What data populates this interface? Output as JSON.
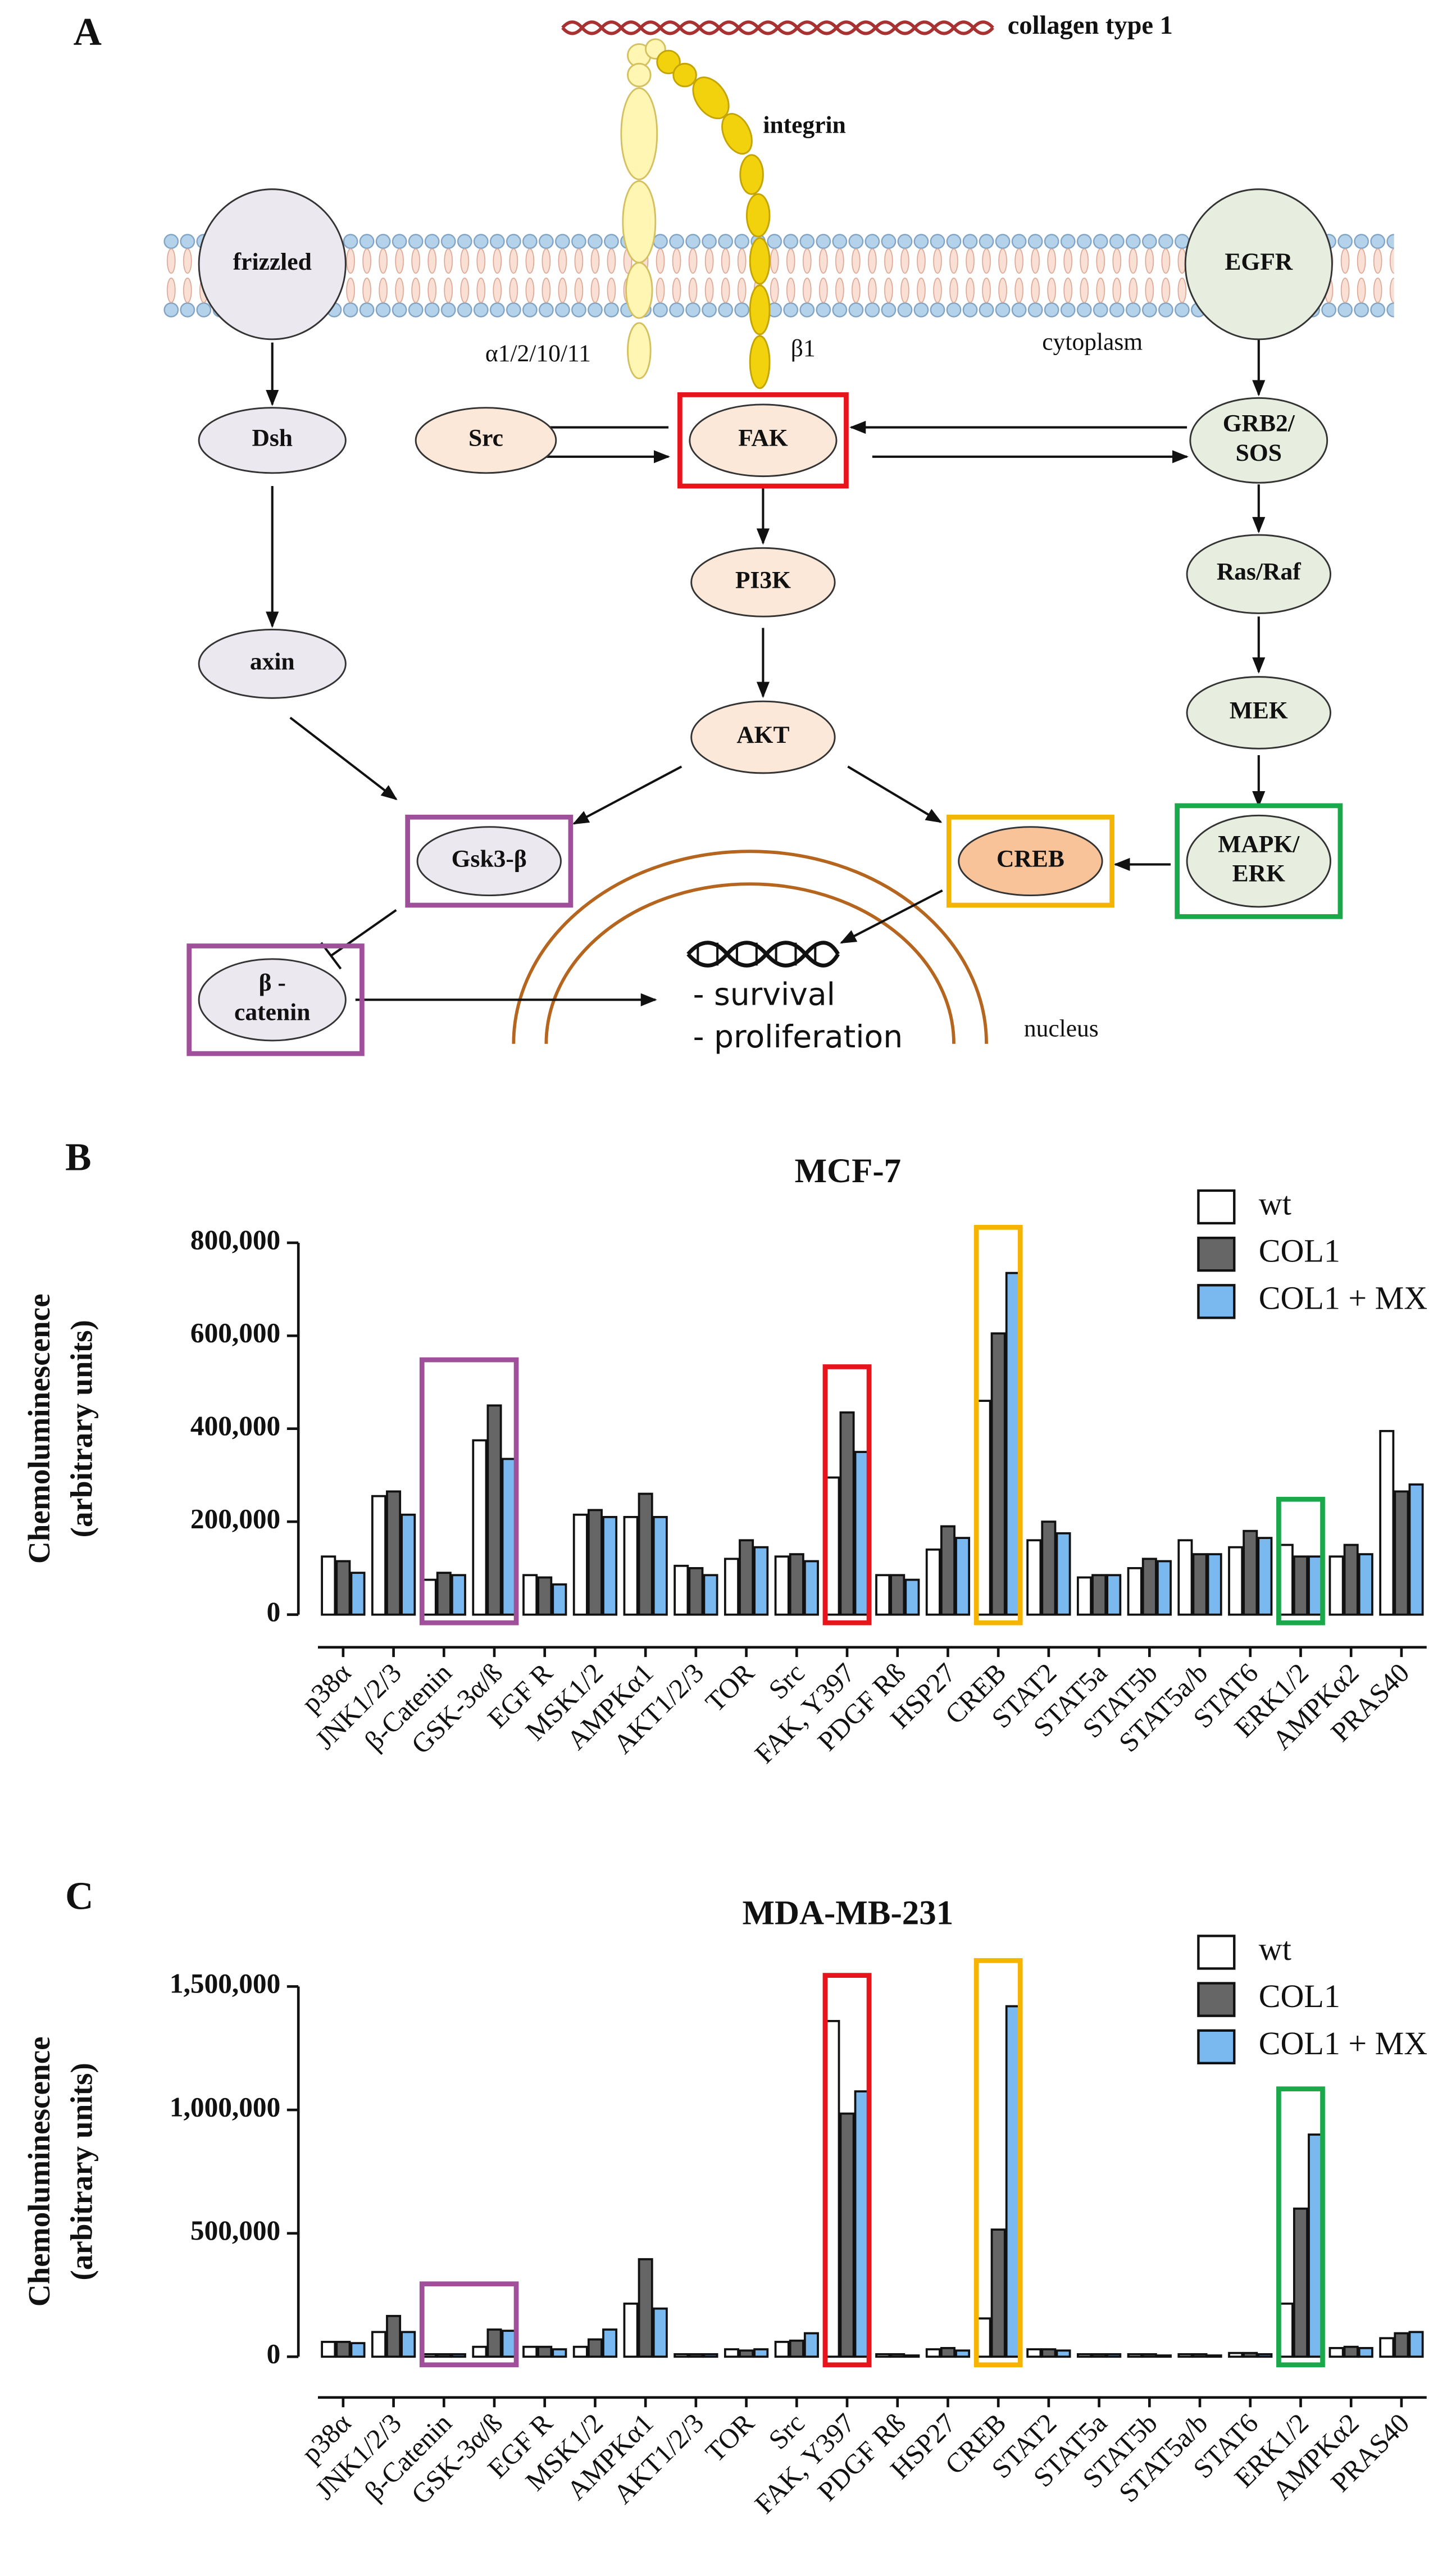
{
  "panel_a": {
    "label": "A",
    "collagen": "collagen type 1",
    "integrin": "integrin",
    "alpha": "α1/2/10/11",
    "beta": "β1",
    "cytoplasm": "cytoplasm",
    "nucleus": "nucleus",
    "outcomes": [
      "- survival",
      "- proliferation"
    ],
    "nodes": [
      {
        "label": [
          "frizzled"
        ]
      },
      {
        "label": [
          "EGFR"
        ]
      },
      {
        "label": [
          "Dsh"
        ]
      },
      {
        "label": [
          "Src"
        ]
      },
      {
        "label": [
          "FAK"
        ]
      },
      {
        "label": [
          "GRB2/",
          "SOS"
        ]
      },
      {
        "label": [
          "PI3K"
        ]
      },
      {
        "label": [
          "Ras/Raf"
        ]
      },
      {
        "label": [
          "axin"
        ]
      },
      {
        "label": [
          "AKT"
        ]
      },
      {
        "label": [
          "MEK"
        ]
      },
      {
        "label": [
          "Gsk3-β"
        ]
      },
      {
        "label": [
          "CREB"
        ]
      },
      {
        "label": [
          "MAPK/",
          "ERK"
        ]
      },
      {
        "label": [
          "β -",
          "catenin"
        ]
      }
    ]
  },
  "chart_data": [
    {
      "type": "bar",
      "panel": "B",
      "title": "MCF-7",
      "y_label": [
        "Chemoluminescence",
        "(arbitrary units)"
      ],
      "categories": [
        "p38α",
        "JNK1/2/3",
        "β-Catenin",
        "GSK-3α/ß",
        "EGF R",
        "MSK1/2",
        "AMPKα1",
        "AKT1/2/3",
        "TOR",
        "Src",
        "FAK, Y397",
        "PDGF Rß",
        "HSP27",
        "CREB",
        "STAT2",
        "STAT5a",
        "STAT5b",
        "STAT5a/b",
        "STAT6",
        "ERK1/2",
        "AMPKα2",
        "PRAS40"
      ],
      "series": [
        {
          "name": "wt",
          "color": "#ffffff",
          "values": [
            125000,
            255000,
            75000,
            375000,
            85000,
            215000,
            210000,
            105000,
            120000,
            125000,
            295000,
            85000,
            140000,
            460000,
            160000,
            80000,
            100000,
            160000,
            145000,
            150000,
            125000,
            395000
          ]
        },
        {
          "name": "COL1",
          "color": "#666666",
          "values": [
            115000,
            265000,
            90000,
            450000,
            80000,
            225000,
            260000,
            100000,
            160000,
            130000,
            435000,
            85000,
            190000,
            605000,
            200000,
            85000,
            120000,
            130000,
            180000,
            125000,
            150000,
            265000
          ]
        },
        {
          "name": "COL1 + MX",
          "color": "#7ab8f0",
          "values": [
            90000,
            215000,
            85000,
            335000,
            65000,
            210000,
            210000,
            85000,
            145000,
            115000,
            350000,
            75000,
            165000,
            735000,
            175000,
            85000,
            115000,
            130000,
            165000,
            125000,
            130000,
            280000
          ]
        }
      ],
      "ylim": [
        0,
        800000
      ],
      "yticks": [
        0,
        {
          "value": 200000,
          "label": "200,000"
        },
        {
          "value": 400000,
          "label": "400,000"
        },
        {
          "value": 600000,
          "label": "600,000"
        },
        {
          "value": 800000,
          "label": "800,000"
        }
      ],
      "grid": false,
      "legend": "top-right",
      "highlights": [
        {
          "categories": [
            2,
            3
          ],
          "color": "#a0509a"
        },
        {
          "categories": [
            10
          ],
          "color": "#e8141c"
        },
        {
          "categories": [
            13
          ],
          "color": "#f5b400"
        },
        {
          "categories": [
            19
          ],
          "color": "#1aa84a"
        }
      ]
    },
    {
      "type": "bar",
      "panel": "C",
      "title": "MDA-MB-231",
      "y_label": [
        "Chemoluminescence",
        "(arbitrary units)"
      ],
      "categories": [
        "p38α",
        "JNK1/2/3",
        "β-Catenin",
        "GSK-3α/ß",
        "EGF R",
        "MSK1/2",
        "AMPKα1",
        "AKT1/2/3",
        "TOR",
        "Src",
        "FAK, Y397",
        "PDGF Rß",
        "HSP27",
        "CREB",
        "STAT2",
        "STAT5a",
        "STAT5b",
        "STAT5a/b",
        "STAT6",
        "ERK1/2",
        "AMPKα2",
        "PRAS40"
      ],
      "series": [
        {
          "name": "wt",
          "color": "#ffffff",
          "values": [
            60000,
            100000,
            10000,
            40000,
            40000,
            40000,
            215000,
            10000,
            30000,
            60000,
            1360000,
            10000,
            30000,
            155000,
            30000,
            10000,
            10000,
            10000,
            15000,
            215000,
            35000,
            75000
          ]
        },
        {
          "name": "COL1",
          "color": "#666666",
          "values": [
            60000,
            165000,
            10000,
            110000,
            40000,
            70000,
            395000,
            10000,
            25000,
            65000,
            985000,
            10000,
            35000,
            515000,
            30000,
            10000,
            10000,
            10000,
            15000,
            600000,
            40000,
            95000
          ]
        },
        {
          "name": "COL1 + MX",
          "color": "#7ab8f0",
          "values": [
            55000,
            100000,
            10000,
            105000,
            30000,
            110000,
            195000,
            10000,
            30000,
            95000,
            1075000,
            5000,
            25000,
            1420000,
            25000,
            10000,
            5000,
            5000,
            10000,
            900000,
            35000,
            100000
          ]
        }
      ],
      "ylim": [
        0,
        1500000
      ],
      "yticks": [
        0,
        {
          "value": 500000,
          "label": "500,000"
        },
        {
          "value": 1000000,
          "label": "1,000,000"
        },
        {
          "value": 1500000,
          "label": "1,500,000"
        }
      ],
      "grid": false,
      "legend": "top-right",
      "highlights": [
        {
          "categories": [
            2,
            3
          ],
          "color": "#a0509a"
        },
        {
          "categories": [
            10
          ],
          "color": "#e8141c"
        },
        {
          "categories": [
            13
          ],
          "color": "#f5b400"
        },
        {
          "categories": [
            19
          ],
          "color": "#1aa84a"
        }
      ]
    }
  ]
}
